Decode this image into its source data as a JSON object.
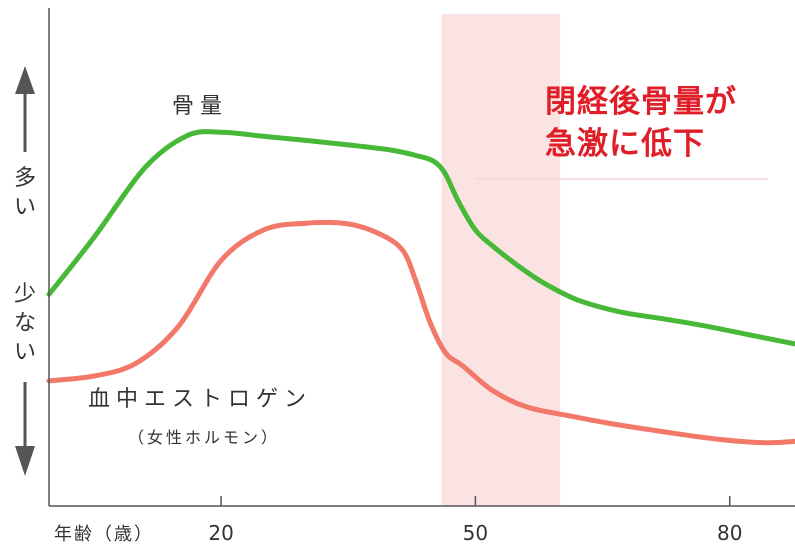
{
  "chart_data": {
    "type": "line",
    "title": "",
    "xlabel": "年齢（歳）",
    "ylabel_high": "多い",
    "ylabel_low": "少ない",
    "x_ticks": [
      20,
      50,
      80
    ],
    "xlim": [
      -0.3,
      87.7
    ],
    "ylim": [
      0,
      100
    ],
    "highlight_band": {
      "x_start": 46,
      "x_end": 60,
      "color": "#fbe3e3"
    },
    "series": [
      {
        "name": "骨量",
        "color": "#48b838",
        "x": [
          -0.3,
          5,
          11,
          16,
          20,
          25,
          30,
          35,
          40,
          43,
          45,
          46.4,
          48,
          50,
          52,
          55,
          58,
          62,
          67,
          72,
          77,
          82,
          87.7
        ],
        "y": [
          50.2,
          66.8,
          87.2,
          96.6,
          97.6,
          96.4,
          95.2,
          93.9,
          92.4,
          90.8,
          89.2,
          85.6,
          77.3,
          69.0,
          64.4,
          58.6,
          53.6,
          48.6,
          45.1,
          43.1,
          41.0,
          38.5,
          35.7
        ]
      },
      {
        "name": "血中エストロゲン",
        "subname": "（女性ホルモン）",
        "color": "#f2786a",
        "x": [
          -0.3,
          5,
          10,
          15,
          20,
          25,
          30,
          35,
          39,
          41.5,
          43,
          44.7,
          46.5,
          48.5,
          52,
          56,
          61,
          66,
          72,
          78,
          84,
          87.7
        ],
        "y": [
          24.9,
          26.3,
          30.1,
          40.9,
          60.1,
          69.0,
          71.0,
          70.8,
          67.5,
          62.8,
          53.9,
          41.7,
          33.0,
          29.3,
          22.1,
          17.3,
          14.7,
          12.4,
          10.1,
          8.0,
          6.8,
          7.2
        ]
      }
    ],
    "annotation": [
      "閉経後骨量が",
      "急激に低下"
    ],
    "annotation_color": "#e01e28",
    "colors": {
      "axis": "#555555",
      "arrow": "#555555",
      "text": "#333333"
    }
  }
}
